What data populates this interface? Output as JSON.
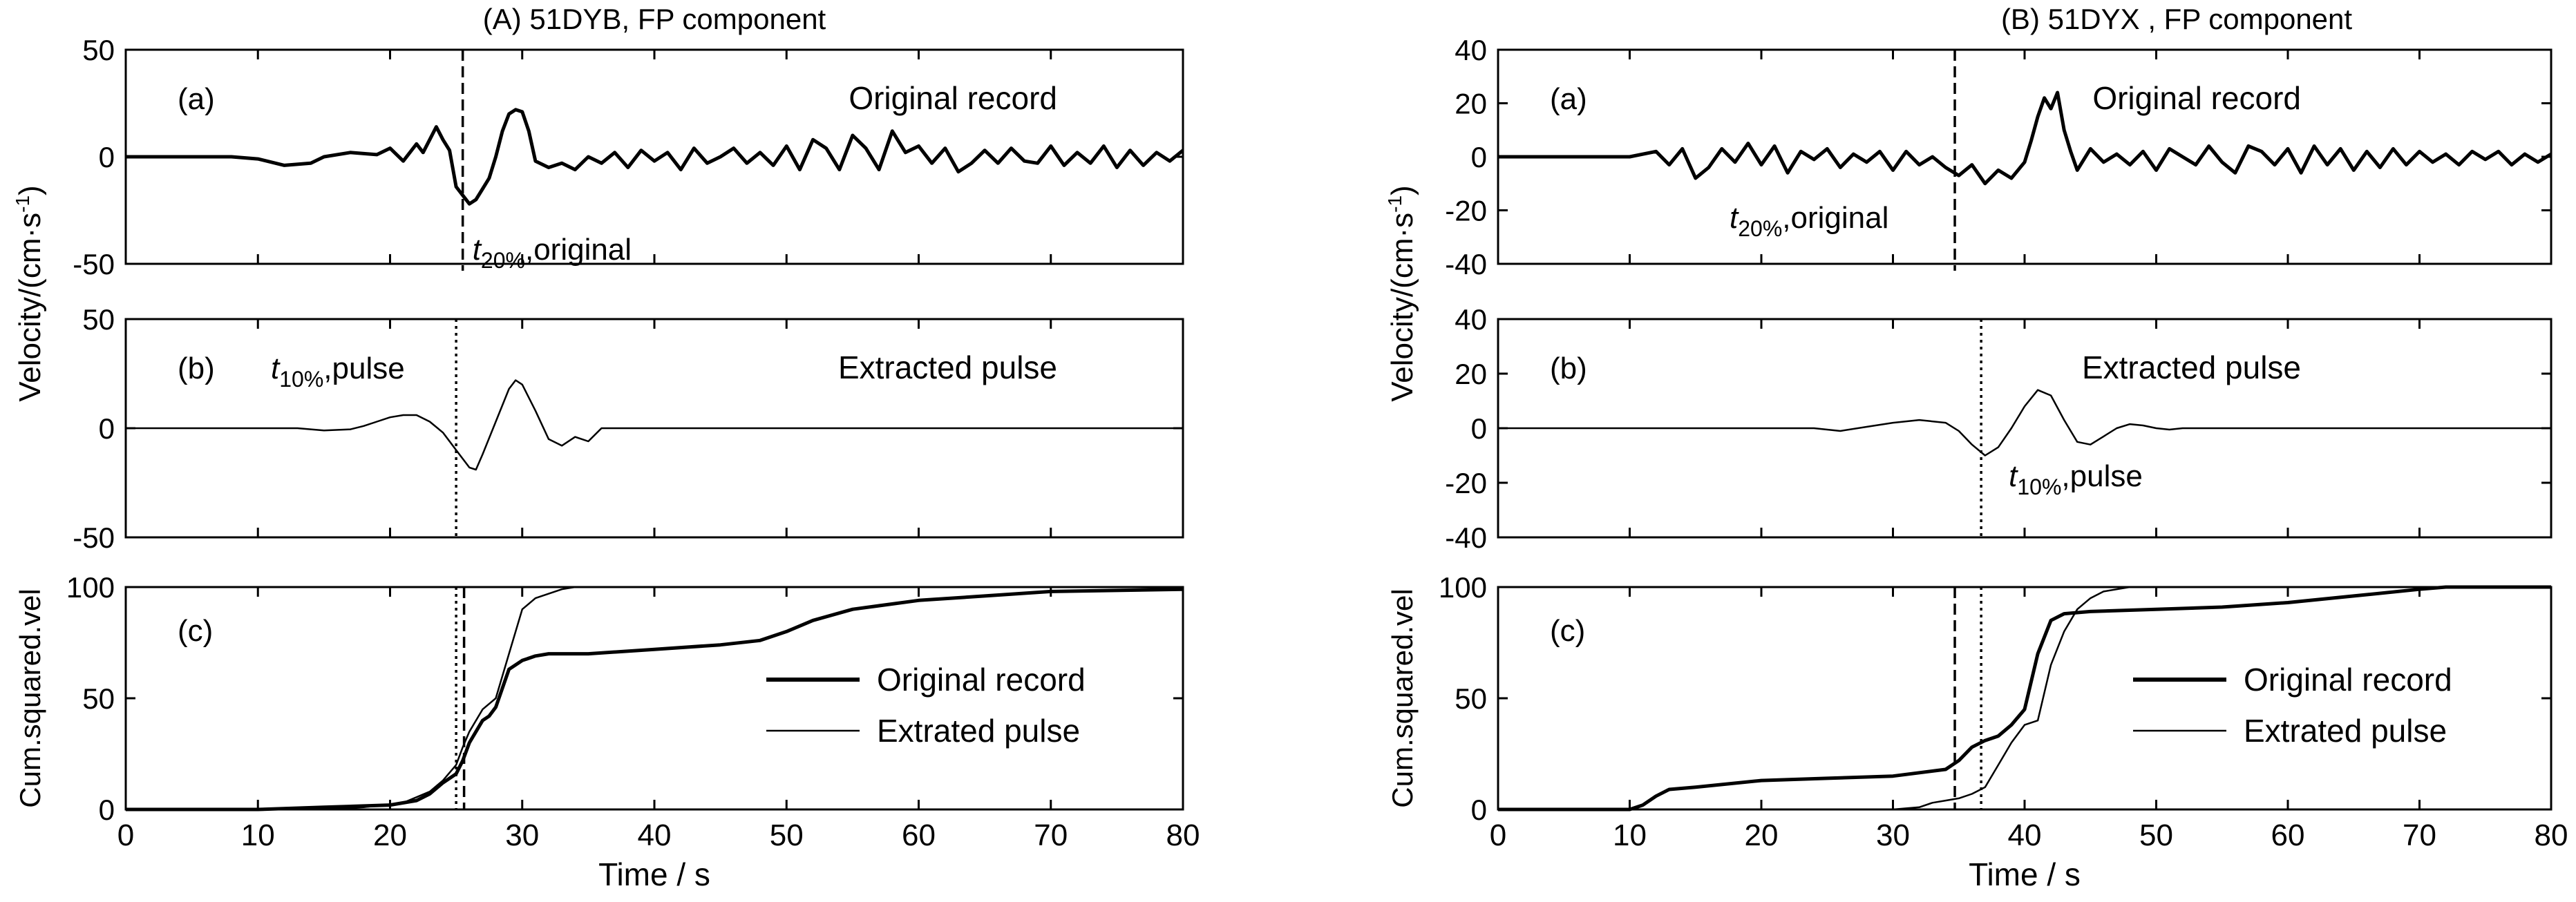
{
  "chart_data": [
    {
      "type": "line",
      "title": "(A) 51DYB, FP component",
      "time_ticks": [
        "0",
        "10",
        "20",
        "30",
        "40",
        "50",
        "60",
        "70",
        "80"
      ],
      "time_range": [
        0,
        80
      ],
      "xlabel": "Time / s",
      "velocity_label": "Velocity/(cm·s",
      "velocity_label_exp": "-1",
      "velocity_label_close": ")",
      "panels": [
        {
          "tag": "(a)",
          "note": "Original record",
          "ylim": [
            -50,
            50
          ],
          "yticks": [
            "50",
            "0",
            "-50"
          ],
          "ytick_values": [
            50,
            0,
            -50
          ],
          "marker": {
            "t": 25.5,
            "style": "dashed",
            "label_pre": "t",
            "label_sub": "20%",
            "label_post": ",original"
          },
          "series": [
            {
              "line": "thick",
              "x": [
                0,
                8,
                10,
                12,
                14,
                15,
                17,
                19,
                20,
                21,
                22,
                22.5,
                23,
                23.5,
                24,
                24.5,
                25,
                25.5,
                26,
                26.5,
                27,
                27.5,
                28,
                28.5,
                29,
                29.5,
                30,
                30.5,
                31,
                32,
                33,
                34,
                35,
                36,
                37,
                38,
                39,
                40,
                41,
                42,
                43,
                44,
                45,
                46,
                47,
                48,
                49,
                50,
                51,
                52,
                53,
                54,
                55,
                56,
                57,
                58,
                59,
                60,
                61,
                62,
                63,
                64,
                65,
                66,
                67,
                68,
                69,
                70,
                71,
                72,
                73,
                74,
                75,
                76,
                77,
                78,
                79,
                80
              ],
              "y": [
                0,
                0,
                -1,
                -4,
                -3,
                0,
                2,
                1,
                4,
                -2,
                6,
                2,
                8,
                14,
                8,
                3,
                -14,
                -18,
                -22,
                -20,
                -15,
                -10,
                0,
                12,
                20,
                22,
                21,
                12,
                -2,
                -5,
                -3,
                -6,
                0,
                -3,
                2,
                -5,
                3,
                -2,
                2,
                -6,
                4,
                -3,
                0,
                4,
                -3,
                2,
                -4,
                5,
                -6,
                8,
                4,
                -6,
                10,
                4,
                -6,
                12,
                2,
                5,
                -3,
                4,
                -7,
                -3,
                3,
                -3,
                4,
                -2,
                -3,
                5,
                -4,
                2,
                -3,
                5,
                -5,
                3,
                -4,
                2,
                -2,
                3
              ]
            }
          ]
        },
        {
          "tag": "(b)",
          "note": "Extracted pulse",
          "ylim": [
            -50,
            50
          ],
          "yticks": [
            "50",
            "0",
            "-50"
          ],
          "ytick_values": [
            50,
            0,
            -50
          ],
          "marker": {
            "t": 25.0,
            "style": "dotted",
            "label_pre": "t",
            "label_sub": "10%",
            "label_post": ",pulse"
          },
          "series": [
            {
              "line": "thin",
              "x": [
                0,
                13,
                15,
                17,
                18,
                19,
                20,
                21,
                22,
                23,
                24,
                25,
                26,
                26.5,
                27,
                28,
                29,
                29.5,
                30,
                31,
                32,
                33,
                34,
                35,
                36,
                37,
                80
              ],
              "y": [
                0,
                0,
                -1,
                -0.5,
                1,
                3,
                5,
                6,
                6,
                3,
                -2,
                -10,
                -18,
                -19,
                -12,
                3,
                18,
                22,
                20,
                8,
                -5,
                -8,
                -4,
                -6,
                0,
                0,
                0
              ]
            }
          ]
        },
        {
          "tag": "(c)",
          "ylabel": "Cum.squared.vel",
          "ylim": [
            0,
            100
          ],
          "yticks": [
            "100",
            "50",
            "0"
          ],
          "ytick_values": [
            100,
            50,
            0
          ],
          "markers": [
            {
              "t": 25.0,
              "style": "dotted"
            },
            {
              "t": 25.6,
              "style": "dashed"
            }
          ],
          "legend": "right",
          "series": [
            {
              "name": "Original record",
              "line": "thick",
              "x": [
                0,
                10,
                15,
                20,
                22,
                23,
                24,
                25,
                25.5,
                26,
                27,
                27.5,
                28,
                29,
                30,
                31,
                32,
                35,
                40,
                45,
                48,
                50,
                52,
                55,
                60,
                65,
                70,
                80
              ],
              "y": [
                0,
                0,
                1,
                2,
                4,
                7,
                12,
                16,
                22,
                30,
                40,
                42,
                46,
                63,
                67,
                69,
                70,
                70,
                72,
                74,
                76,
                80,
                85,
                90,
                94,
                96,
                98,
                99
              ]
            },
            {
              "name": "Extrated pulse",
              "line": "thin",
              "x": [
                0,
                14,
                18,
                21,
                23,
                24,
                25,
                25.5,
                26,
                27,
                28,
                29,
                30,
                31,
                33,
                34,
                80
              ],
              "y": [
                0,
                0,
                1,
                3,
                8,
                13,
                20,
                28,
                35,
                45,
                50,
                70,
                90,
                95,
                99,
                100,
                100
              ]
            }
          ]
        }
      ]
    },
    {
      "type": "line",
      "title": "(B) 51DYX , FP component",
      "time_ticks": [
        "0",
        "10",
        "20",
        "30",
        "40",
        "50",
        "60",
        "70",
        "80"
      ],
      "time_range": [
        0,
        80
      ],
      "xlabel": "Time / s",
      "velocity_label": "Velocity/(cm·s",
      "velocity_label_exp": "-1",
      "velocity_label_close": ")",
      "panels": [
        {
          "tag": "(a)",
          "note": "Original record",
          "ylim": [
            -40,
            40
          ],
          "yticks": [
            "40",
            "20",
            "0",
            "-20",
            "-40"
          ],
          "ytick_values": [
            40,
            20,
            0,
            -20,
            -40
          ],
          "marker": {
            "t": 34.7,
            "style": "dashed",
            "label_pre": "t",
            "label_sub": "20%",
            "label_post": ",original"
          },
          "series": [
            {
              "line": "thick",
              "x": [
                0,
                10,
                12,
                13,
                14,
                15,
                16,
                17,
                18,
                19,
                20,
                21,
                22,
                23,
                24,
                25,
                26,
                27,
                28,
                29,
                30,
                31,
                32,
                33,
                34,
                35,
                36,
                37,
                38,
                39,
                40,
                40.5,
                41,
                41.5,
                42,
                42.5,
                43,
                43.5,
                44,
                45,
                46,
                47,
                48,
                49,
                50,
                51,
                52,
                53,
                54,
                55,
                56,
                57,
                58,
                59,
                60,
                61,
                62,
                63,
                64,
                65,
                66,
                67,
                68,
                69,
                70,
                71,
                72,
                73,
                74,
                75,
                76,
                77,
                78,
                79,
                80
              ],
              "y": [
                0,
                0,
                2,
                -3,
                3,
                -8,
                -4,
                3,
                -2,
                5,
                -3,
                4,
                -6,
                2,
                -1,
                3,
                -4,
                1,
                -2,
                2,
                -5,
                2,
                -3,
                0,
                -4,
                -7,
                -3,
                -10,
                -5,
                -8,
                -2,
                6,
                15,
                22,
                18,
                24,
                10,
                2,
                -5,
                3,
                -2,
                1,
                -3,
                2,
                -5,
                3,
                0,
                -3,
                4,
                -2,
                -6,
                4,
                2,
                -3,
                3,
                -6,
                4,
                -3,
                3,
                -5,
                2,
                -4,
                3,
                -3,
                2,
                -2,
                1,
                -3,
                2,
                -1,
                2,
                -3,
                1,
                -2,
                1
              ]
            }
          ]
        },
        {
          "tag": "(b)",
          "note": "Extracted pulse",
          "ylim": [
            -40,
            40
          ],
          "yticks": [
            "40",
            "20",
            "0",
            "-20",
            "-40"
          ],
          "ytick_values": [
            40,
            20,
            0,
            -20,
            -40
          ],
          "marker": {
            "t": 36.7,
            "style": "dotted",
            "label_pre": "t",
            "label_sub": "10%",
            "label_post": ",pulse"
          },
          "series": [
            {
              "line": "thin",
              "x": [
                0,
                24,
                26,
                28,
                30,
                32,
                34,
                35,
                36,
                37,
                38,
                39,
                40,
                41,
                42,
                43,
                44,
                45,
                46,
                47,
                48,
                49,
                50,
                51,
                52,
                80
              ],
              "y": [
                0,
                0,
                -1,
                0.5,
                2,
                3,
                2,
                -1,
                -6,
                -10,
                -7,
                0,
                8,
                14,
                12,
                3,
                -5,
                -6,
                -3,
                0,
                1.5,
                1,
                0,
                -0.5,
                0,
                0
              ]
            }
          ]
        },
        {
          "tag": "(c)",
          "ylabel": "Cum.squared.vel",
          "ylim": [
            0,
            100
          ],
          "yticks": [
            "100",
            "50",
            "0"
          ],
          "ytick_values": [
            100,
            50,
            0
          ],
          "markers": [
            {
              "t": 34.7,
              "style": "dashed"
            },
            {
              "t": 36.7,
              "style": "dotted"
            }
          ],
          "legend": "right",
          "series": [
            {
              "name": "Original record",
              "line": "thick",
              "x": [
                0,
                10,
                11,
                12,
                13,
                15,
                20,
                25,
                30,
                34,
                35,
                36,
                37,
                38,
                39,
                40,
                41,
                42,
                43,
                45,
                50,
                55,
                60,
                65,
                70,
                72,
                80
              ],
              "y": [
                0,
                0,
                2,
                6,
                9,
                10,
                13,
                14,
                15,
                18,
                22,
                28,
                31,
                33,
                38,
                45,
                70,
                85,
                88,
                89,
                90,
                91,
                93,
                96,
                99,
                100,
                100
              ]
            },
            {
              "name": "Extrated pulse",
              "line": "thin",
              "x": [
                0,
                30,
                32,
                33,
                34,
                35,
                36,
                37,
                38,
                39,
                40,
                41,
                42,
                43,
                44,
                45,
                46,
                48,
                80
              ],
              "y": [
                0,
                0,
                1,
                3,
                4,
                5,
                7,
                10,
                20,
                30,
                38,
                40,
                65,
                80,
                90,
                95,
                98,
                100,
                100
              ]
            }
          ]
        }
      ]
    }
  ]
}
